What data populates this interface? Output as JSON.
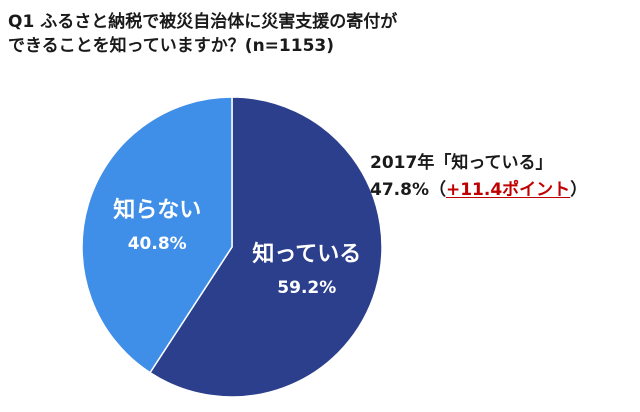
{
  "title": {
    "line1": "Q1 ふるさと納税で被災自治体に災害支援の寄付が",
    "line2": "できることを知っていますか？(n=1153)"
  },
  "note": {
    "line1": "2017年「知っている」",
    "value": "47.8%",
    "paren_open": "（",
    "diff": "+11.4ポイント",
    "paren_close": "）"
  },
  "colors": {
    "known": "#2b3f8c",
    "unknown": "#3f8ee8",
    "label_text": "#ffffff",
    "diff": "#c00000"
  },
  "chart_data": {
    "type": "pie",
    "slices": [
      {
        "label": "知っている",
        "value": 59.2,
        "value_label": "59.2%",
        "color": "#2b3f8c"
      },
      {
        "label": "知らない",
        "value": 40.8,
        "value_label": "40.8%",
        "color": "#3f8ee8"
      }
    ]
  }
}
